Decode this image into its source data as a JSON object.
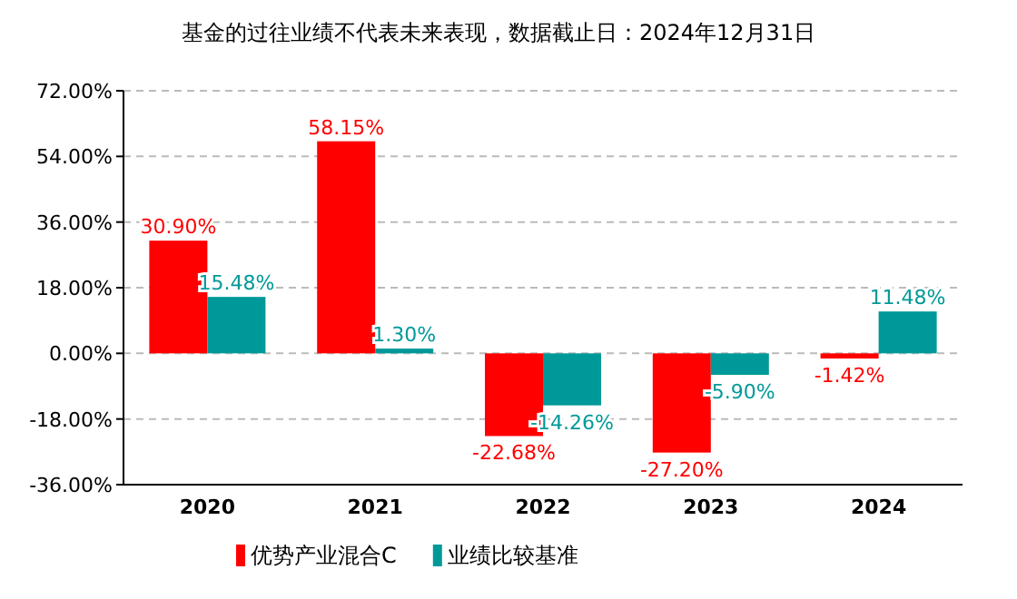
{
  "chart_data": {
    "type": "bar",
    "title": "基金的过往业绩不代表未来表现，数据截止日：2024年12月31日",
    "categories": [
      "2020",
      "2021",
      "2022",
      "2023",
      "2024"
    ],
    "series": [
      {
        "name": "优势产业混合C",
        "color": "#ff0000",
        "values": [
          30.9,
          58.15,
          -22.68,
          -27.2,
          -1.42
        ],
        "value_labels": [
          "30.90%",
          "58.15%",
          "-22.68%",
          "-27.20%",
          "-1.42%"
        ]
      },
      {
        "name": "业绩比较基准",
        "color": "#009999",
        "values": [
          15.48,
          1.3,
          -14.26,
          -5.9,
          11.48
        ],
        "value_labels": [
          "15.48%",
          "1.30%",
          "-14.26%",
          "-5.90%",
          "11.48%"
        ]
      }
    ],
    "ylim": [
      -36,
      72
    ],
    "yticks": [
      {
        "value": 72,
        "label": "72.00%"
      },
      {
        "value": 54,
        "label": "54.00%"
      },
      {
        "value": 36,
        "label": "36.00%"
      },
      {
        "value": 18,
        "label": "18.00%"
      },
      {
        "value": 0,
        "label": "0.00%"
      },
      {
        "value": -18,
        "label": "-18.00%"
      },
      {
        "value": -36,
        "label": "-36.00%"
      }
    ],
    "grid": "y",
    "legend": "bottom"
  }
}
